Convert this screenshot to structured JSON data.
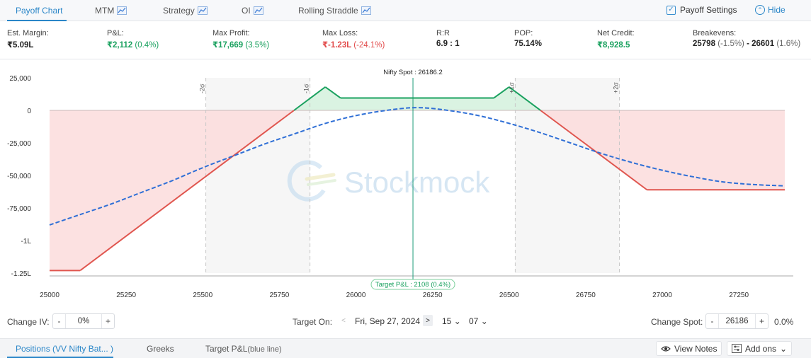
{
  "tabs": [
    {
      "label": "Payoff Chart",
      "active": true
    },
    {
      "label": "MTM"
    },
    {
      "label": "Strategy"
    },
    {
      "label": "OI"
    },
    {
      "label": "Rolling Straddle"
    }
  ],
  "header": {
    "payoff_settings": "Payoff Settings",
    "hide": "Hide"
  },
  "stats": {
    "est_margin": {
      "label": "Est. Margin:",
      "value": "₹5.09L"
    },
    "pnl": {
      "label": "P&L:",
      "value": "₹2,112",
      "pct": "(0.4%)"
    },
    "max_profit": {
      "label": "Max Profit:",
      "value": "₹17,669",
      "pct": "(3.5%)"
    },
    "max_loss": {
      "label": "Max Loss:",
      "value": "₹-1.23L",
      "pct": "(-24.1%)"
    },
    "rr": {
      "label": "R:R",
      "value": "6.9 : 1"
    },
    "pop": {
      "label": "POP:",
      "value": "75.14%"
    },
    "net_credit": {
      "label": "Net Credit:",
      "value": "₹8,928.5"
    },
    "breakevens": {
      "label": "Breakevens:",
      "low": "25798",
      "low_pct": "(-1.5%)",
      "sep": " - ",
      "high": "26601",
      "high_pct": "(1.6%)"
    }
  },
  "chart_data": {
    "type": "line",
    "x_ticks": [
      25000,
      25250,
      25500,
      25750,
      26000,
      26250,
      26500,
      26750,
      27000,
      27250
    ],
    "x_tick_labels": [
      "25000",
      "25250",
      "25500",
      "25750",
      "26000",
      "26250",
      "26500",
      "26750",
      "27000",
      "27250"
    ],
    "y_ticks": [
      25000,
      0,
      -25000,
      -50000,
      -75000,
      -100000,
      -125000
    ],
    "y_tick_labels": [
      "25,000",
      "0",
      "-25,000",
      "-50,000",
      "-75,000",
      "-1L",
      "-1.25L"
    ],
    "xlim": [
      25000,
      27400
    ],
    "ylim": [
      -125000,
      25000
    ],
    "spot_label": "Nifty Spot : 26186.2",
    "spot": 26186.2,
    "target_label": "Target P&L : 2108 (0.4%)",
    "sigma_lines": [
      {
        "x": 25510,
        "label": "-2σ"
      },
      {
        "x": 25850,
        "label": "-1σ"
      },
      {
        "x": 26520,
        "label": "+1σ"
      },
      {
        "x": 26860,
        "label": "+2σ"
      }
    ],
    "series": [
      {
        "key": "expiry",
        "x": [
          25000,
          25100,
          25900,
          25950,
          26450,
          26500,
          26950,
          27400
        ],
        "y": [
          -123000,
          -123000,
          18000,
          9500,
          9500,
          18000,
          -61000,
          -61000
        ]
      },
      {
        "key": "target",
        "x": [
          25000,
          25100,
          25200,
          25300,
          25400,
          25500,
          25600,
          25700,
          25800,
          25900,
          26000,
          26100,
          26200,
          26300,
          26400,
          26500,
          26600,
          26700,
          26800,
          26900,
          27000,
          27100,
          27200,
          27300,
          27400
        ],
        "y": [
          -88000,
          -80000,
          -72000,
          -63000,
          -54000,
          -44000,
          -35000,
          -26000,
          -18000,
          -10000,
          -4000,
          0,
          2100,
          0,
          -4000,
          -10000,
          -17000,
          -25000,
          -33000,
          -40000,
          -46000,
          -51000,
          -55000,
          -57000,
          -58000
        ]
      }
    ],
    "colors": {
      "expiry_profit": "#1aa15f",
      "expiry_loss": "#e0564f",
      "target": "#2f6fd6",
      "profit_fill": "#d6f2df",
      "loss_fill": "#fbdcdc",
      "spot_line": "#1d9a7a"
    },
    "watermark": "Stockmock"
  },
  "controls": {
    "change_iv_label": "Change IV:",
    "iv_minus": "-",
    "iv_value": "0%",
    "iv_plus": "+",
    "target_on_label": "Target On:",
    "prev_arrow": "<",
    "target_date": "Fri, Sep 27, 2024",
    "next_arrow": ">",
    "hour": "15",
    "minute": "07",
    "change_spot_label": "Change Spot:",
    "spot_minus": "-",
    "spot_value": "26186",
    "spot_plus": "+",
    "spot_pct": "0.0%"
  },
  "footer": {
    "positions": "Positions (VV Nifty Bat...  )",
    "greeks": "Greeks",
    "target_pnl": "Target P&L",
    "target_pnl_note": "(blue line)",
    "view_notes": "View Notes",
    "add_ons": "Add ons"
  }
}
